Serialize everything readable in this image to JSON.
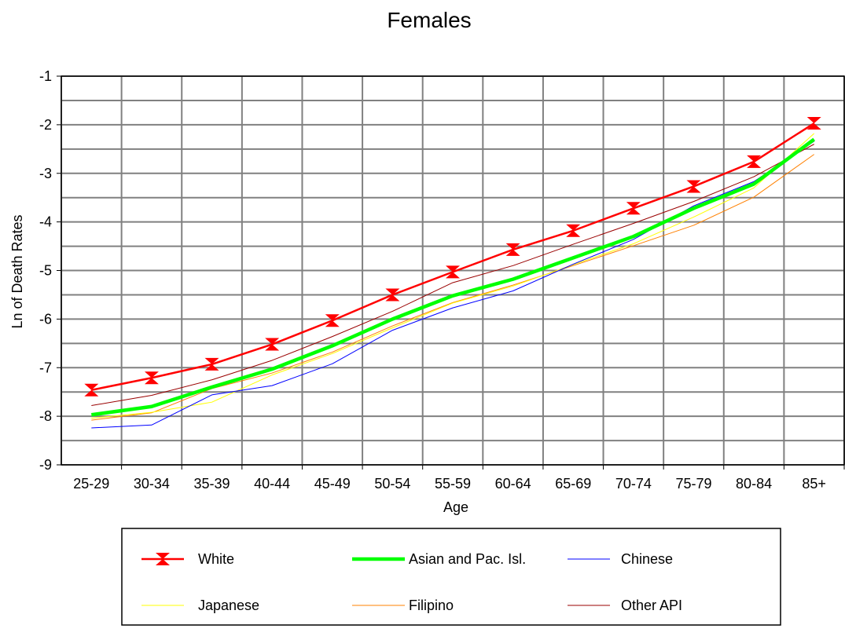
{
  "chart_data": {
    "type": "line",
    "title": "Females",
    "xlabel": "Age",
    "ylabel": "Ln of Death Rates",
    "ylim": [
      -9,
      -1
    ],
    "yticks": [
      "-1",
      "-2",
      "-3",
      "-4",
      "-5",
      "-6",
      "-7",
      "-8",
      "-9"
    ],
    "grid": true,
    "legend_position": "bottom",
    "categories": [
      "25-29",
      "30-34",
      "35-39",
      "40-44",
      "45-49",
      "50-54",
      "55-59",
      "60-64",
      "65-69",
      "70-74",
      "75-79",
      "80-84",
      "85+"
    ],
    "series": [
      {
        "name": "White",
        "color": "#ff0000",
        "marker": "hourglass",
        "values": [
          -7.46,
          -7.21,
          -6.93,
          -6.52,
          -6.03,
          -5.5,
          -5.03,
          -4.57,
          -4.18,
          -3.72,
          -3.27,
          -2.76,
          -1.97
        ]
      },
      {
        "name": "Asian and Pac. Isl.",
        "color": "#00ff00",
        "values": [
          -7.97,
          -7.8,
          -7.4,
          -7.03,
          -6.55,
          -6.0,
          -5.52,
          -5.18,
          -4.74,
          -4.3,
          -3.72,
          -3.22,
          -2.3
        ]
      },
      {
        "name": "Chinese",
        "color": "#0000ff",
        "values": [
          -8.24,
          -8.18,
          -7.56,
          -7.37,
          -6.92,
          -6.23,
          -5.77,
          -5.42,
          -4.87,
          -4.36,
          -3.67,
          -3.17,
          -2.34
        ]
      },
      {
        "name": "Japanese",
        "color": "#ffff00",
        "values": [
          -8.04,
          -7.92,
          -7.71,
          -7.15,
          -6.71,
          -6.18,
          -5.67,
          -5.32,
          -4.88,
          -4.45,
          -3.9,
          -3.3,
          -2.18
        ]
      },
      {
        "name": "Filipino",
        "color": "#ff8000",
        "values": [
          -8.08,
          -7.93,
          -7.43,
          -7.11,
          -6.68,
          -6.14,
          -5.66,
          -5.3,
          -4.9,
          -4.49,
          -4.07,
          -3.49,
          -2.61
        ]
      },
      {
        "name": "Other API",
        "color": "#990000",
        "values": [
          -7.78,
          -7.57,
          -7.25,
          -6.85,
          -6.36,
          -5.84,
          -5.25,
          -4.9,
          -4.46,
          -4.03,
          -3.58,
          -3.07,
          -2.4
        ]
      }
    ]
  }
}
